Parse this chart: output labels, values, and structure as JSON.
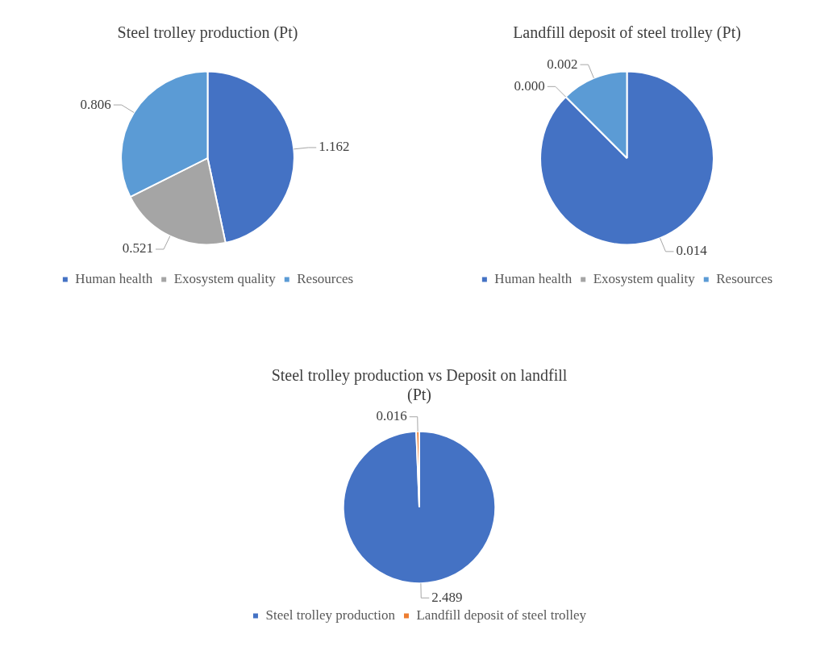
{
  "chart_data": [
    {
      "type": "pie",
      "title": "Steel trolley production (Pt)",
      "categories": [
        "Human health",
        "Exosystem quality",
        "Resources"
      ],
      "values": [
        1.162,
        0.521,
        0.806
      ],
      "value_labels": [
        "1.162",
        "0.521",
        "0.806"
      ],
      "colors": [
        "#4472c4",
        "#a5a5a5",
        "#5b9bd5"
      ],
      "legend": "bottom"
    },
    {
      "type": "pie",
      "title": "Landfill deposit of steel trolley (Pt)",
      "categories": [
        "Human health",
        "Exosystem quality",
        "Resources"
      ],
      "values": [
        0.014,
        0.0,
        0.002
      ],
      "value_labels": [
        "0.014",
        "0.000",
        "0.002"
      ],
      "colors": [
        "#4472c4",
        "#a5a5a5",
        "#5b9bd5"
      ],
      "legend": "bottom"
    },
    {
      "type": "pie",
      "title": "Steel trolley production vs Deposit on landfill (Pt)",
      "categories": [
        "Steel trolley production",
        "Landfill deposit of steel trolley"
      ],
      "values": [
        2.489,
        0.016
      ],
      "value_labels": [
        "2.489",
        "0.016"
      ],
      "colors": [
        "#4472c4",
        "#ed7d31"
      ],
      "legend": "bottom"
    }
  ]
}
